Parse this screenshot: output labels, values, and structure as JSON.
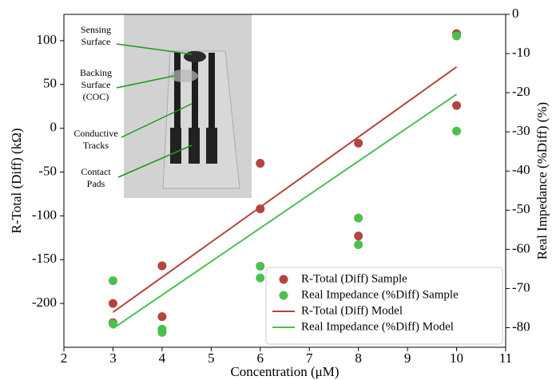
{
  "chart_data": {
    "type": "scatter",
    "xlabel": "Concentration (μM)",
    "ylabel": "R-Total (Diff) (kΩ)",
    "y2label": "Real Impedance (%Diff) (%)",
    "xlim": [
      2,
      11
    ],
    "xticks": [
      2,
      3,
      4,
      5,
      6,
      7,
      8,
      9,
      10,
      11
    ],
    "ylim": [
      -250,
      130
    ],
    "yticks": [
      -200,
      -150,
      -100,
      -50,
      0,
      50,
      100
    ],
    "y2lim": [
      -85,
      0
    ],
    "y2ticks": [
      -80,
      -70,
      -60,
      -50,
      -40,
      -30,
      -20,
      -10,
      0
    ],
    "legend": "lower right",
    "series": [
      {
        "name": "R-Total (Diff) Sample",
        "type": "scatter",
        "color": "#b5443e",
        "x": [
          3,
          3,
          4,
          4,
          6,
          6,
          8,
          8,
          10,
          10
        ],
        "values": [
          -200,
          -222,
          -157,
          -215,
          -40,
          -92,
          -17,
          -123,
          108,
          26
        ]
      },
      {
        "name": "Real Impedance (%Diff) Sample",
        "type": "scatter",
        "color": "#4cc04c",
        "axis": "y2",
        "x": [
          3,
          3,
          4,
          4,
          6,
          6,
          8,
          8,
          10,
          10
        ],
        "values": [
          -68,
          -79,
          -80.4,
          -81.2,
          -64.3,
          -67.3,
          -52,
          -58.8,
          -29.8,
          -5.5
        ]
      },
      {
        "name": "R-Total (Diff) Model",
        "type": "line",
        "color": "#b5443e",
        "x": [
          3,
          10
        ],
        "values": [
          -210,
          70
        ]
      },
      {
        "name": "Real Impedance (%Diff) Model",
        "type": "line",
        "color": "#4cc04c",
        "axis": "y2",
        "x": [
          3,
          10
        ],
        "values": [
          -80.2,
          -20.4
        ]
      }
    ],
    "annotations": [
      {
        "lines": [
          "Sensing",
          "Surface"
        ]
      },
      {
        "lines": [
          "Backing",
          "Surface",
          "(COC)"
        ]
      },
      {
        "lines": [
          "Conductive",
          "Tracks"
        ]
      },
      {
        "lines": [
          "Contact",
          "Pads"
        ]
      }
    ]
  }
}
